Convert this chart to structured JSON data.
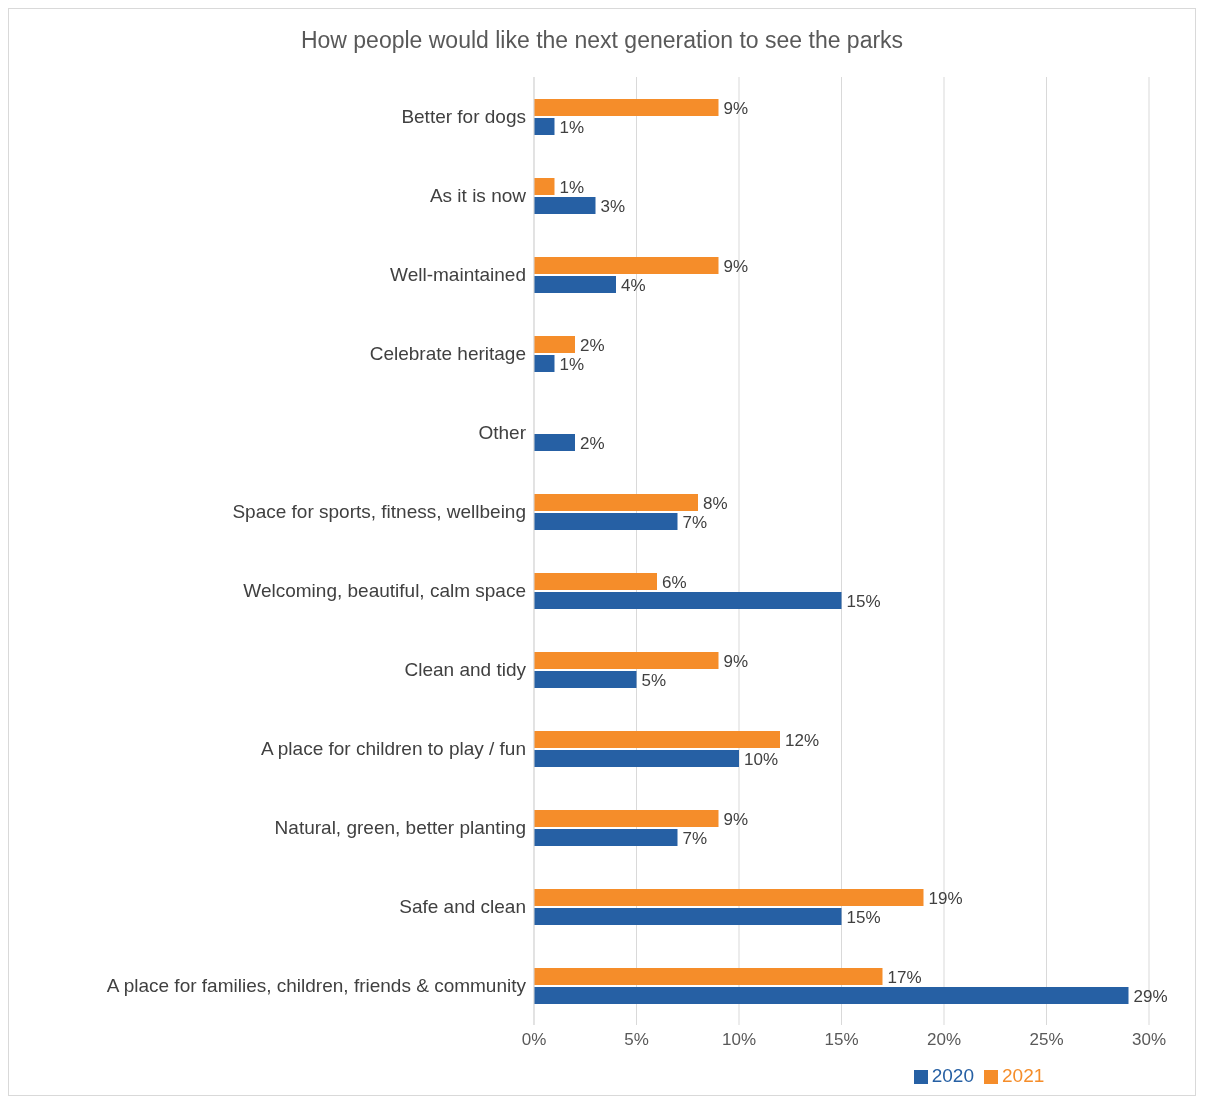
{
  "chart_data": {
    "type": "bar",
    "orientation": "horizontal",
    "title": "How people would like the next generation to see the parks",
    "categories": [
      "Better for dogs",
      "As it is now",
      "Well-maintained",
      "Celebrate heritage",
      "Other",
      "Space for sports, fitness, wellbeing",
      "Welcoming, beautiful, calm space",
      "Clean and tidy",
      "A place for children to play / fun",
      "Natural, green, better planting",
      "Safe and clean",
      "A place for families, children, friends & community"
    ],
    "series": [
      {
        "name": "2021",
        "color": "#f58d2a",
        "values": [
          9,
          1,
          9,
          2,
          null,
          8,
          6,
          9,
          12,
          9,
          19,
          17
        ],
        "value_labels": [
          "9%",
          "1%",
          "9%",
          "2%",
          null,
          "8%",
          "6%",
          "9%",
          "12%",
          "9%",
          "19%",
          "17%"
        ]
      },
      {
        "name": "2020",
        "color": "#2660a4",
        "values": [
          1,
          3,
          4,
          1,
          2,
          7,
          15,
          5,
          10,
          7,
          15,
          29
        ],
        "value_labels": [
          "1%",
          "3%",
          "4%",
          "1%",
          "2%",
          "7%",
          "15%",
          "5%",
          "10%",
          "7%",
          "15%",
          "29%"
        ]
      }
    ],
    "xlim": [
      0,
      30
    ],
    "xticks": [
      {
        "value": 0,
        "label": "0%"
      },
      {
        "value": 5,
        "label": "5%"
      },
      {
        "value": 10,
        "label": "10%"
      },
      {
        "value": 15,
        "label": "15%"
      },
      {
        "value": 20,
        "label": "20%"
      },
      {
        "value": 25,
        "label": "25%"
      },
      {
        "value": 30,
        "label": "30%"
      }
    ],
    "grid": "x",
    "legend": "bottom"
  }
}
